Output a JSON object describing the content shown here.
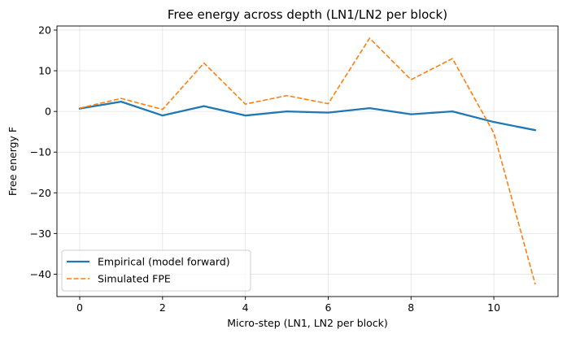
{
  "chart_data": {
    "type": "line",
    "title": "Free energy across depth (LN1/LN2 per block)",
    "xlabel": "Micro-step (LN1, LN2 per block)",
    "ylabel": "Free energy F",
    "xlim": [
      -0.55,
      11.55
    ],
    "ylim": [
      -45.5,
      21
    ],
    "xticks": [
      0,
      2,
      4,
      6,
      8,
      10
    ],
    "yticks": [
      20,
      10,
      0,
      -10,
      -20,
      -30,
      -40
    ],
    "ytick_labels": [
      "20",
      "10",
      "0",
      "−10",
      "−20",
      "−30",
      "−40"
    ],
    "grid": true,
    "legend_position": "lower-left",
    "x": [
      0,
      1,
      2,
      3,
      4,
      5,
      6,
      7,
      8,
      9,
      10,
      11
    ],
    "series": [
      {
        "name": "Empirical (model forward)",
        "color": "#1f77b4",
        "style": "solid",
        "values": [
          0.7,
          2.4,
          -1.0,
          1.3,
          -1.0,
          0.0,
          -0.3,
          0.8,
          -0.7,
          0.0,
          -2.6,
          -4.6
        ]
      },
      {
        "name": "Simulated FPE",
        "color": "#ff7f0e",
        "style": "dashed",
        "values": [
          0.8,
          3.2,
          0.5,
          11.9,
          1.8,
          3.9,
          1.9,
          18.0,
          7.8,
          13.0,
          -5.3,
          -42.5
        ]
      }
    ]
  }
}
